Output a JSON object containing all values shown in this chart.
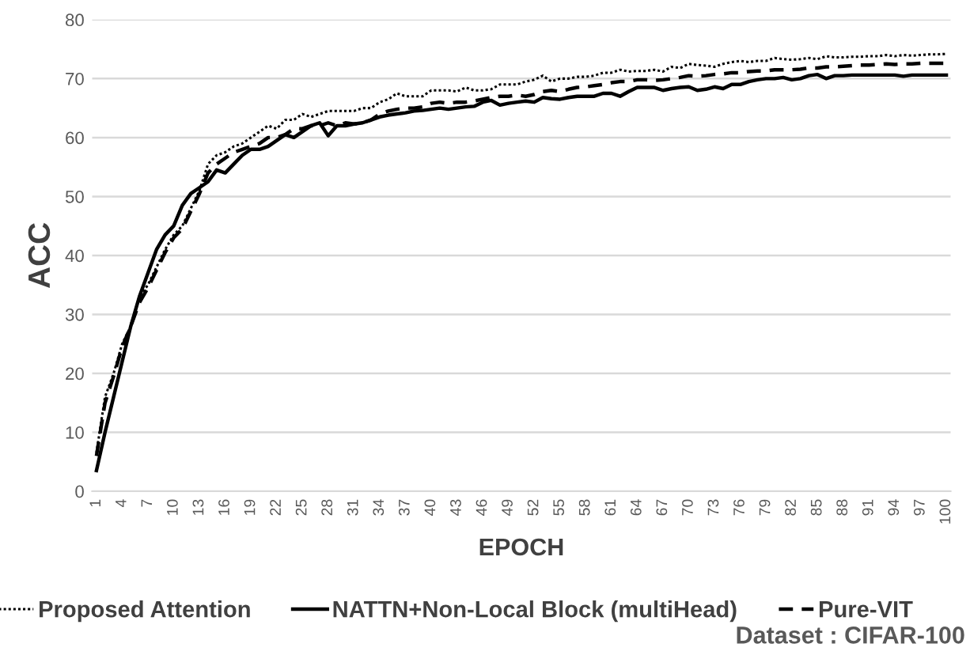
{
  "chart_data": {
    "type": "line",
    "xlabel": "EPOCH",
    "ylabel": "ACC",
    "categories": [
      "1",
      null,
      null,
      "4",
      null,
      null,
      "7",
      null,
      null,
      "10",
      null,
      null,
      "13",
      null,
      null,
      "16",
      null,
      null,
      "19",
      null,
      null,
      "22",
      null,
      null,
      "25",
      null,
      null,
      "28",
      null,
      null,
      "31",
      null,
      null,
      "34",
      null,
      null,
      "37",
      null,
      null,
      "40",
      null,
      null,
      "43",
      null,
      null,
      "46",
      null,
      null,
      "49",
      null,
      null,
      "52",
      null,
      null,
      "55",
      null,
      null,
      "58",
      null,
      null,
      "61",
      null,
      null,
      "64",
      null,
      null,
      "67",
      null,
      null,
      "70",
      null,
      null,
      "73",
      null,
      null,
      "76",
      null,
      null,
      "79",
      null,
      null,
      "82",
      null,
      null,
      "85",
      null,
      null,
      "88",
      null,
      null,
      "91",
      null,
      null,
      "94",
      null,
      null,
      "97",
      null,
      null,
      "100"
    ],
    "series": [
      {
        "name": "Proposed Attention",
        "color": "#000000",
        "line_style": "dotted",
        "values": [
          6.5,
          16,
          20,
          25,
          28,
          33,
          35,
          38,
          41,
          43.5,
          45,
          48,
          51,
          55.5,
          57,
          57.5,
          58.5,
          59,
          60,
          61,
          62,
          61.5,
          63,
          63,
          64,
          63.5,
          64,
          64.5,
          64.5,
          64.5,
          64.5,
          65,
          65,
          66,
          66.5,
          67.5,
          67,
          67,
          67,
          68,
          68,
          68,
          67.8,
          68.5,
          68,
          68,
          68.2,
          69,
          69,
          69,
          69.5,
          69.8,
          70.5,
          69.5,
          70,
          70,
          70.3,
          70.3,
          70.5,
          71,
          71,
          71.5,
          71.2,
          71.3,
          71.3,
          71.5,
          71.2,
          72,
          71.8,
          72.5,
          72.3,
          72.2,
          72,
          72.5,
          72.8,
          73,
          72.8,
          73,
          73,
          73.5,
          73.3,
          73.2,
          73.3,
          73.5,
          73.3,
          73.8,
          73.6,
          73.6,
          73.7,
          73.7,
          73.8,
          73.8,
          74,
          73.8,
          74,
          73.9,
          74,
          74.1,
          74.1,
          74.2
        ]
      },
      {
        "name": "NATTN+Non-Local Block (multiHead)",
        "color": "#000000",
        "line_style": "solid",
        "values": [
          3.5,
          10,
          16,
          22,
          28,
          33,
          37,
          41,
          43.5,
          45,
          48.5,
          50.5,
          51.5,
          52.5,
          54.5,
          54,
          55.5,
          57,
          58,
          58,
          58.5,
          59.5,
          60.5,
          60,
          61,
          62,
          62.5,
          60.3,
          62,
          62,
          62.3,
          62.5,
          63,
          63.5,
          63.8,
          64,
          64.2,
          64.5,
          64.6,
          64.8,
          65,
          64.8,
          65,
          65.2,
          65.3,
          66,
          66.3,
          65.5,
          65.8,
          66,
          66.2,
          66,
          66.8,
          66.6,
          66.5,
          66.8,
          67,
          67,
          67,
          67.5,
          67.5,
          67,
          67.8,
          68.5,
          68.5,
          68.5,
          68,
          68.3,
          68.5,
          68.6,
          68,
          68.2,
          68.6,
          68.3,
          69,
          69,
          69.5,
          69.8,
          70,
          70,
          70.2,
          69.8,
          70,
          70.5,
          70.7,
          70,
          70.5,
          70.5,
          70.6,
          70.6,
          70.6,
          70.6,
          70.6,
          70.6,
          70.4,
          70.6,
          70.6,
          70.6,
          70.6,
          70.6
        ]
      },
      {
        "name": "Pure-VIT",
        "color": "#000000",
        "line_style": "dashed",
        "values": [
          6,
          15,
          19.5,
          24.5,
          28,
          32,
          34.5,
          37.5,
          40.5,
          43,
          44.5,
          47.5,
          50.5,
          54,
          55.5,
          56.5,
          57.5,
          58,
          58.5,
          59,
          60,
          60,
          60.5,
          61.5,
          61.5,
          62,
          62,
          62.5,
          62,
          62.5,
          62.3,
          62.5,
          63,
          64,
          64.5,
          64.8,
          65,
          65,
          65.2,
          65.8,
          66,
          65.8,
          66,
          66,
          66.2,
          66.5,
          66.8,
          67,
          67,
          67.2,
          67,
          67.3,
          67.8,
          68,
          67.8,
          68.2,
          68.5,
          68.6,
          68.8,
          69,
          69.3,
          69.5,
          69.5,
          69.8,
          69.8,
          69.7,
          69.8,
          70,
          70.2,
          70.5,
          70.4,
          70.5,
          70.7,
          70.8,
          71,
          71,
          71.2,
          71.3,
          71.3,
          71.5,
          71.5,
          71.5,
          71.6,
          71.8,
          71.8,
          72,
          72,
          72.1,
          72.2,
          72.3,
          72.3,
          72.4,
          72.5,
          72.4,
          72.5,
          72.5,
          72.6,
          72.6,
          72.6,
          72.6
        ]
      }
    ],
    "ylim": [
      0,
      80
    ],
    "yticks": [
      0,
      10,
      20,
      30,
      40,
      50,
      60,
      70,
      80
    ],
    "grid": "y",
    "legend": "bottom",
    "annotations": [
      "Dataset : CIFAR-100"
    ]
  }
}
